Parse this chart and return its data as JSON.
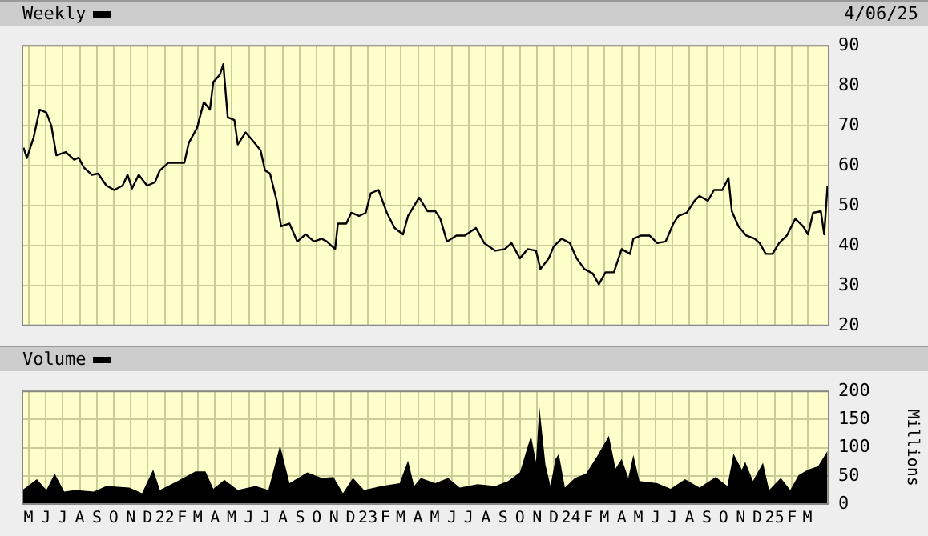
{
  "chart_data": [
    {
      "type": "line",
      "legend": "top left",
      "annotations": [
        "4/06/25"
      ],
      "grid": true,
      "tick_labels": "y",
      "line_style": "solid",
      "marker": "none",
      "series": [
        {
          "name": "Weekly",
          "color": "#000000",
          "x": [
            "2021-04-22",
            "2021-04-28",
            "2021-05-10",
            "2021-05-21",
            "2021-06-02",
            "2021-06-11",
            "2021-06-20",
            "2021-07-07",
            "2021-07-22",
            "2021-07-30",
            "2021-08-08",
            "2021-08-23",
            "2021-09-03",
            "2021-09-18",
            "2021-10-02",
            "2021-10-17",
            "2021-10-26",
            "2021-11-03",
            "2021-11-15",
            "2021-11-30",
            "2021-12-14",
            "2021-12-23",
            "2022-01-07",
            "2022-01-21",
            "2022-02-05",
            "2022-02-13",
            "2022-02-28",
            "2022-03-12",
            "2022-03-23",
            "2022-03-29",
            "2022-04-10",
            "2022-04-16",
            "2022-04-24",
            "2022-05-06",
            "2022-05-12",
            "2022-05-26",
            "2022-06-07",
            "2022-06-22",
            "2022-06-30",
            "2022-07-09",
            "2022-07-21",
            "2022-07-29",
            "2022-08-13",
            "2022-08-27",
            "2022-09-11",
            "2022-09-26",
            "2022-10-10",
            "2022-10-19",
            "2022-11-03",
            "2022-11-08",
            "2022-11-23",
            "2022-12-02",
            "2022-12-16",
            "2022-12-28",
            "2023-01-06",
            "2023-01-20",
            "2023-02-04",
            "2023-02-18",
            "2023-03-05",
            "2023-03-14",
            "2023-04-03",
            "2023-04-18",
            "2023-05-02",
            "2023-05-11",
            "2023-05-23",
            "2023-06-09",
            "2023-06-24",
            "2023-07-14",
            "2023-07-29",
            "2023-08-18",
            "2023-09-04",
            "2023-09-16",
            "2023-10-01",
            "2023-10-15",
            "2023-10-30",
            "2023-11-07",
            "2023-11-22",
            "2023-12-01",
            "2023-12-15",
            "2023-12-30",
            "2024-01-11",
            "2024-01-25",
            "2024-02-09",
            "2024-02-20",
            "2024-03-03",
            "2024-03-18",
            "2024-04-01",
            "2024-04-16",
            "2024-04-22",
            "2024-05-06",
            "2024-05-21",
            "2024-06-04",
            "2024-06-19",
            "2024-07-03",
            "2024-07-12",
            "2024-07-27",
            "2024-08-10",
            "2024-08-19",
            "2024-09-03",
            "2024-09-14",
            "2024-09-29",
            "2024-10-10",
            "2024-10-16",
            "2024-10-28",
            "2024-11-11",
            "2024-11-26",
            "2024-12-05",
            "2024-12-16",
            "2024-12-28",
            "2025-01-09",
            "2025-01-23",
            "2025-02-07",
            "2025-02-21",
            "2025-03-02",
            "2025-03-11",
            "2025-03-25",
            "2025-03-31",
            "2025-04-06"
          ],
          "values": [
            64.5,
            61.9,
            67,
            74,
            73.3,
            70,
            62.6,
            63.4,
            61.5,
            62,
            59.6,
            57.7,
            58,
            55,
            53.9,
            55,
            57.7,
            54.3,
            57.7,
            55,
            55.8,
            58.8,
            60.7,
            60.7,
            60.7,
            65.7,
            69.5,
            75.9,
            74,
            80.9,
            82.8,
            85.4,
            72.1,
            71.4,
            65.3,
            68.3,
            66.4,
            63.8,
            58.8,
            58,
            51.2,
            44.8,
            45.5,
            41,
            42.8,
            41,
            41.7,
            41,
            39.1,
            45.5,
            45.5,
            48.2,
            47.4,
            48.2,
            53.1,
            53.9,
            48.2,
            44.4,
            42.8,
            47.4,
            52,
            48.6,
            48.6,
            46.7,
            41,
            42.5,
            42.5,
            44.4,
            40.6,
            38.7,
            39.1,
            40.6,
            36.8,
            39.1,
            38.7,
            34.1,
            36.8,
            39.8,
            41.7,
            40.6,
            36.8,
            34.1,
            33,
            30.3,
            33.3,
            33.3,
            39.1,
            37.9,
            41.7,
            42.5,
            42.5,
            40.6,
            41,
            45.5,
            47.4,
            48.2,
            51.2,
            52.4,
            51.2,
            53.9,
            53.9,
            56.9,
            48.6,
            44.8,
            42.5,
            41.7,
            40.6,
            37.9,
            37.9,
            40.6,
            42.5,
            46.7,
            44.8,
            42.8,
            48.2,
            48.6,
            42.8,
            55
          ]
        }
      ],
      "xlim": [
        "2021-04-20",
        "2025-04-08"
      ],
      "xticks": [
        {
          "value": "2021-05-01",
          "label": null
        },
        {
          "value": "2021-06-01",
          "label": null
        },
        {
          "value": "2021-07-01",
          "label": null
        },
        {
          "value": "2021-08-01",
          "label": null
        },
        {
          "value": "2021-09-01",
          "label": null
        },
        {
          "value": "2021-10-01",
          "label": null
        },
        {
          "value": "2021-11-01",
          "label": null
        },
        {
          "value": "2021-12-01",
          "label": null
        },
        {
          "value": "2022-01-01",
          "label": null
        },
        {
          "value": "2022-02-01",
          "label": null
        },
        {
          "value": "2022-03-01",
          "label": null
        },
        {
          "value": "2022-04-01",
          "label": null
        },
        {
          "value": "2022-05-01",
          "label": null
        },
        {
          "value": "2022-06-01",
          "label": null
        },
        {
          "value": "2022-07-01",
          "label": null
        },
        {
          "value": "2022-08-01",
          "label": null
        },
        {
          "value": "2022-09-01",
          "label": null
        },
        {
          "value": "2022-10-01",
          "label": null
        },
        {
          "value": "2022-11-01",
          "label": null
        },
        {
          "value": "2022-12-01",
          "label": null
        },
        {
          "value": "2023-01-01",
          "label": null
        },
        {
          "value": "2023-02-01",
          "label": null
        },
        {
          "value": "2023-03-01",
          "label": null
        },
        {
          "value": "2023-04-01",
          "label": null
        },
        {
          "value": "2023-05-01",
          "label": null
        },
        {
          "value": "2023-06-01",
          "label": null
        },
        {
          "value": "2023-07-01",
          "label": null
        },
        {
          "value": "2023-08-01",
          "label": null
        },
        {
          "value": "2023-09-01",
          "label": null
        },
        {
          "value": "2023-10-01",
          "label": null
        },
        {
          "value": "2023-11-01",
          "label": null
        },
        {
          "value": "2023-12-01",
          "label": null
        },
        {
          "value": "2024-01-01",
          "label": null
        },
        {
          "value": "2024-02-01",
          "label": null
        },
        {
          "value": "2024-03-01",
          "label": null
        },
        {
          "value": "2024-04-01",
          "label": null
        },
        {
          "value": "2024-05-01",
          "label": null
        },
        {
          "value": "2024-06-01",
          "label": null
        },
        {
          "value": "2024-07-01",
          "label": null
        },
        {
          "value": "2024-08-01",
          "label": null
        },
        {
          "value": "2024-09-01",
          "label": null
        },
        {
          "value": "2024-10-01",
          "label": null
        },
        {
          "value": "2024-11-01",
          "label": null
        },
        {
          "value": "2024-12-01",
          "label": null
        },
        {
          "value": "2025-01-01",
          "label": null
        },
        {
          "value": "2025-02-01",
          "label": null
        },
        {
          "value": "2025-03-01",
          "label": null
        }
      ],
      "ylim": [
        20,
        90
      ],
      "yticks": [
        20,
        30,
        40,
        50,
        60,
        70,
        80,
        90
      ]
    },
    {
      "type": "area",
      "legend": "top left",
      "grid": true,
      "ylabel": "Millions",
      "marker": "none",
      "series": [
        {
          "name": "Volume",
          "color": "#000000",
          "x": [
            "2021-04-20",
            "2021-05-16",
            "2021-06-02",
            "2021-06-17",
            "2021-07-04",
            "2021-07-24",
            "2021-08-26",
            "2021-09-18",
            "2021-10-29",
            "2021-11-21",
            "2021-12-11",
            "2021-12-23",
            "2022-01-24",
            "2022-02-25",
            "2022-03-15",
            "2022-03-29",
            "2022-04-18",
            "2022-05-12",
            "2022-06-13",
            "2022-07-06",
            "2022-07-27",
            "2022-08-13",
            "2022-09-14",
            "2022-10-10",
            "2022-10-31",
            "2022-11-17",
            "2022-12-05",
            "2022-12-25",
            "2023-01-26",
            "2023-02-27",
            "2023-03-14",
            "2023-03-25",
            "2023-04-06",
            "2023-05-02",
            "2023-05-25",
            "2023-06-15",
            "2023-07-17",
            "2023-08-18",
            "2023-09-10",
            "2023-10-01",
            "2023-10-21",
            "2023-10-30",
            "2023-11-05",
            "2023-11-16",
            "2023-11-25",
            "2023-12-04",
            "2023-12-10",
            "2023-12-21",
            "2024-01-08",
            "2024-01-28",
            "2024-02-17",
            "2024-03-09",
            "2024-03-21",
            "2024-04-01",
            "2024-04-13",
            "2024-04-22",
            "2024-05-03",
            "2024-06-04",
            "2024-06-28",
            "2024-07-24",
            "2024-08-19",
            "2024-09-17",
            "2024-10-08",
            "2024-10-19",
            "2024-11-03",
            "2024-11-09",
            "2024-11-23",
            "2024-12-11",
            "2024-12-22",
            "2025-01-12",
            "2025-01-29",
            "2025-02-13",
            "2025-03-02",
            "2025-03-20",
            "2025-04-06"
          ],
          "values": [
            25,
            44,
            25,
            54,
            22,
            25,
            22,
            32,
            29,
            19,
            61,
            25,
            41,
            58,
            58,
            27,
            43,
            25,
            32,
            25,
            104,
            37,
            56,
            46,
            48,
            19,
            46,
            25,
            32,
            37,
            77,
            32,
            46,
            37,
            46,
            29,
            35,
            32,
            41,
            56,
            121,
            75,
            173,
            70,
            32,
            80,
            89,
            29,
            46,
            54,
            85,
            121,
            63,
            80,
            46,
            87,
            41,
            37,
            27,
            44,
            29,
            48,
            32,
            89,
            61,
            75,
            41,
            73,
            25,
            46,
            25,
            51,
            61,
            67,
            94
          ]
        }
      ],
      "xlim": [
        "2021-04-20",
        "2025-04-08"
      ],
      "xticks": [
        {
          "value": "2021-05-01",
          "label": "M"
        },
        {
          "value": "2021-06-01",
          "label": "J"
        },
        {
          "value": "2021-07-01",
          "label": "J"
        },
        {
          "value": "2021-08-01",
          "label": "A"
        },
        {
          "value": "2021-09-01",
          "label": "S"
        },
        {
          "value": "2021-10-01",
          "label": "O"
        },
        {
          "value": "2021-11-01",
          "label": "N"
        },
        {
          "value": "2021-12-01",
          "label": "D"
        },
        {
          "value": "2022-01-01",
          "label": "22"
        },
        {
          "value": "2022-02-01",
          "label": "F"
        },
        {
          "value": "2022-03-01",
          "label": "M"
        },
        {
          "value": "2022-04-01",
          "label": "A"
        },
        {
          "value": "2022-05-01",
          "label": "M"
        },
        {
          "value": "2022-06-01",
          "label": "J"
        },
        {
          "value": "2022-07-01",
          "label": "J"
        },
        {
          "value": "2022-08-01",
          "label": "A"
        },
        {
          "value": "2022-09-01",
          "label": "S"
        },
        {
          "value": "2022-10-01",
          "label": "O"
        },
        {
          "value": "2022-11-01",
          "label": "N"
        },
        {
          "value": "2022-12-01",
          "label": "D"
        },
        {
          "value": "2023-01-01",
          "label": "23"
        },
        {
          "value": "2023-02-01",
          "label": "F"
        },
        {
          "value": "2023-03-01",
          "label": "M"
        },
        {
          "value": "2023-04-01",
          "label": "A"
        },
        {
          "value": "2023-05-01",
          "label": "M"
        },
        {
          "value": "2023-06-01",
          "label": "J"
        },
        {
          "value": "2023-07-01",
          "label": "J"
        },
        {
          "value": "2023-08-01",
          "label": "A"
        },
        {
          "value": "2023-09-01",
          "label": "S"
        },
        {
          "value": "2023-10-01",
          "label": "O"
        },
        {
          "value": "2023-11-01",
          "label": "N"
        },
        {
          "value": "2023-12-01",
          "label": "D"
        },
        {
          "value": "2024-01-01",
          "label": "24"
        },
        {
          "value": "2024-02-01",
          "label": "F"
        },
        {
          "value": "2024-03-01",
          "label": "M"
        },
        {
          "value": "2024-04-01",
          "label": "A"
        },
        {
          "value": "2024-05-01",
          "label": "M"
        },
        {
          "value": "2024-06-01",
          "label": "J"
        },
        {
          "value": "2024-07-01",
          "label": "J"
        },
        {
          "value": "2024-08-01",
          "label": "A"
        },
        {
          "value": "2024-09-01",
          "label": "S"
        },
        {
          "value": "2024-10-01",
          "label": "O"
        },
        {
          "value": "2024-11-01",
          "label": "N"
        },
        {
          "value": "2024-12-01",
          "label": "D"
        },
        {
          "value": "2025-01-01",
          "label": "25"
        },
        {
          "value": "2025-02-01",
          "label": "F"
        },
        {
          "value": "2025-03-01",
          "label": "M"
        }
      ],
      "ylim": [
        0,
        200
      ],
      "yticks": [
        0,
        50,
        100,
        150,
        200
      ]
    }
  ]
}
